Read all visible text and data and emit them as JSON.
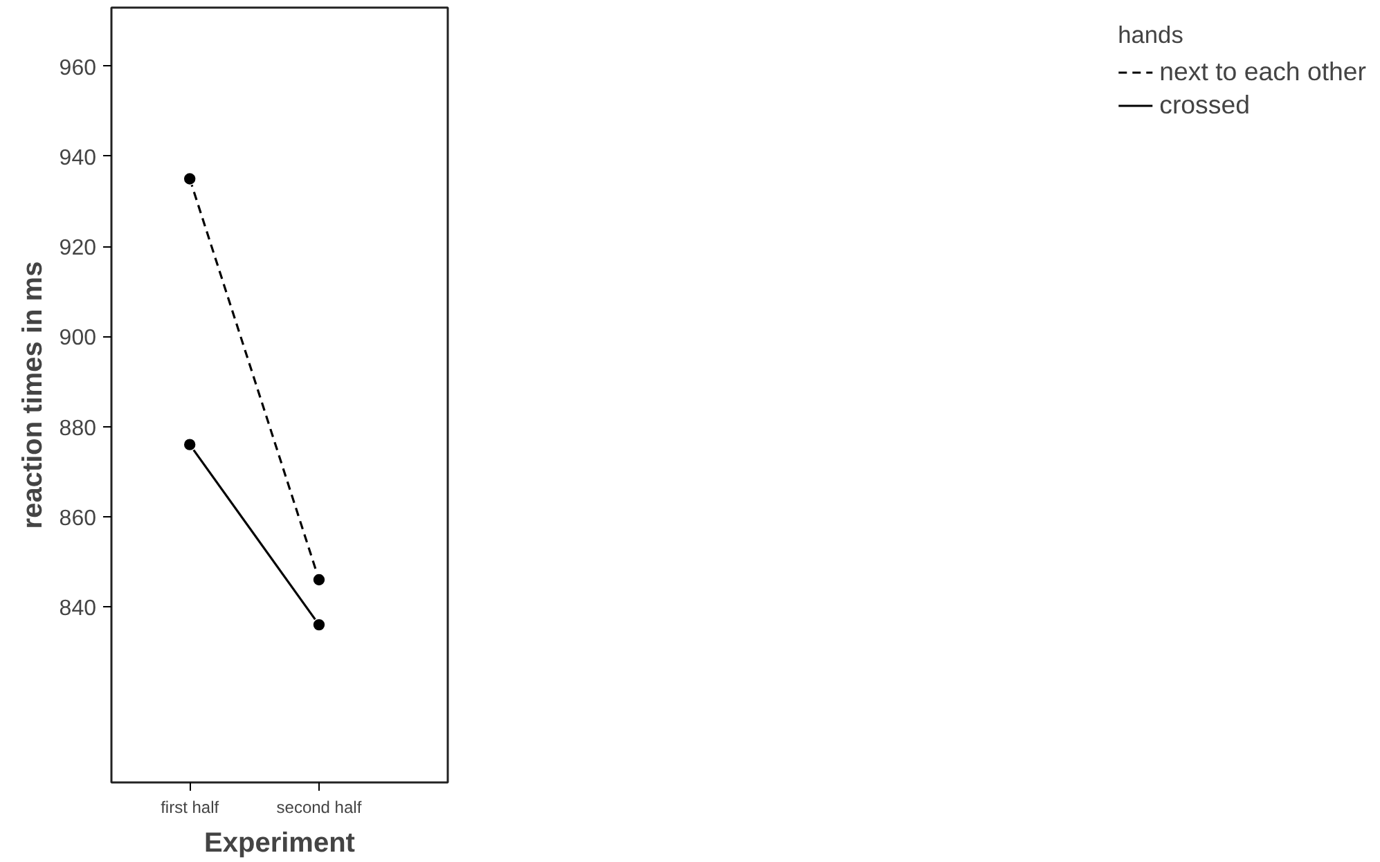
{
  "chart_data": {
    "type": "line",
    "xlabel": "Experiment",
    "ylabel": "reaction times in ms",
    "legend_title": "hands",
    "categories": [
      "first half",
      "second half"
    ],
    "series": [
      {
        "name": "next to each other",
        "color": "#000000",
        "values": [
          935,
          846
        ],
        "line_style": "dashed"
      },
      {
        "name": "crossed",
        "color": "#000000",
        "values": [
          876,
          836
        ],
        "line_style": "solid"
      }
    ],
    "ylim": [
      801,
      973
    ],
    "yticks": [
      840,
      860,
      880,
      900,
      920,
      940,
      960
    ],
    "grid": false,
    "legend": "top right",
    "marker": "circle"
  }
}
